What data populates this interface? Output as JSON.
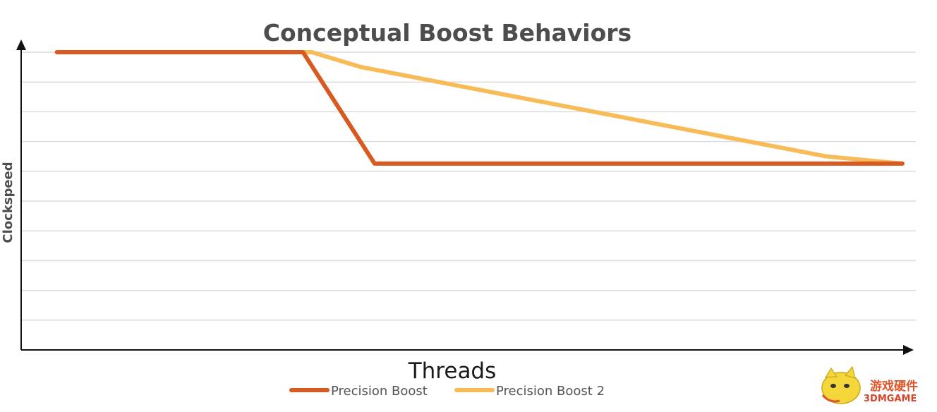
{
  "chart_data": {
    "type": "line",
    "title": "Conceptual Boost Behaviors",
    "xlabel": "Threads",
    "ylabel": "Clockspeed",
    "xlim": [
      0,
      100
    ],
    "ylim": [
      0,
      10
    ],
    "grid": true,
    "legend_position": "bottom-center",
    "series": [
      {
        "name": "Precision Boost",
        "color": "#d95a21",
        "points": [
          [
            4,
            10
          ],
          [
            31.5,
            10
          ],
          [
            39.5,
            6.26
          ],
          [
            98.5,
            6.26
          ]
        ]
      },
      {
        "name": "Precision Boost 2",
        "color": "#f7bc57",
        "points": [
          [
            4,
            10
          ],
          [
            32.5,
            10
          ],
          [
            38,
            9.5
          ],
          [
            90,
            6.5
          ],
          [
            98.5,
            6.26
          ]
        ]
      }
    ]
  },
  "watermark": {
    "text_cn": "游戏硬件",
    "text_en": "3DMGAME"
  }
}
